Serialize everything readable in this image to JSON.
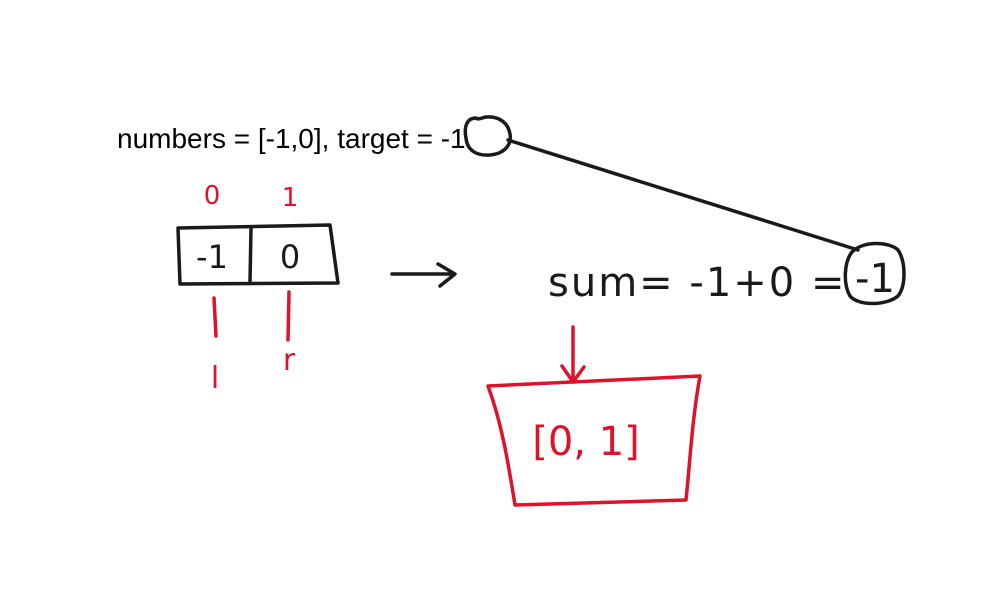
{
  "problem": {
    "text": "numbers = [-1,0], target = -1"
  },
  "array": {
    "indices": [
      "0",
      "1"
    ],
    "values": [
      "-1",
      "0"
    ],
    "pointers": [
      "l",
      "r"
    ]
  },
  "sum": {
    "text": "sum= -1+0 =",
    "result": "-1"
  },
  "output": {
    "text": "[0, 1]"
  },
  "colors": {
    "black_ink": "#1a1a1a",
    "red_ink": "#e0122b"
  }
}
